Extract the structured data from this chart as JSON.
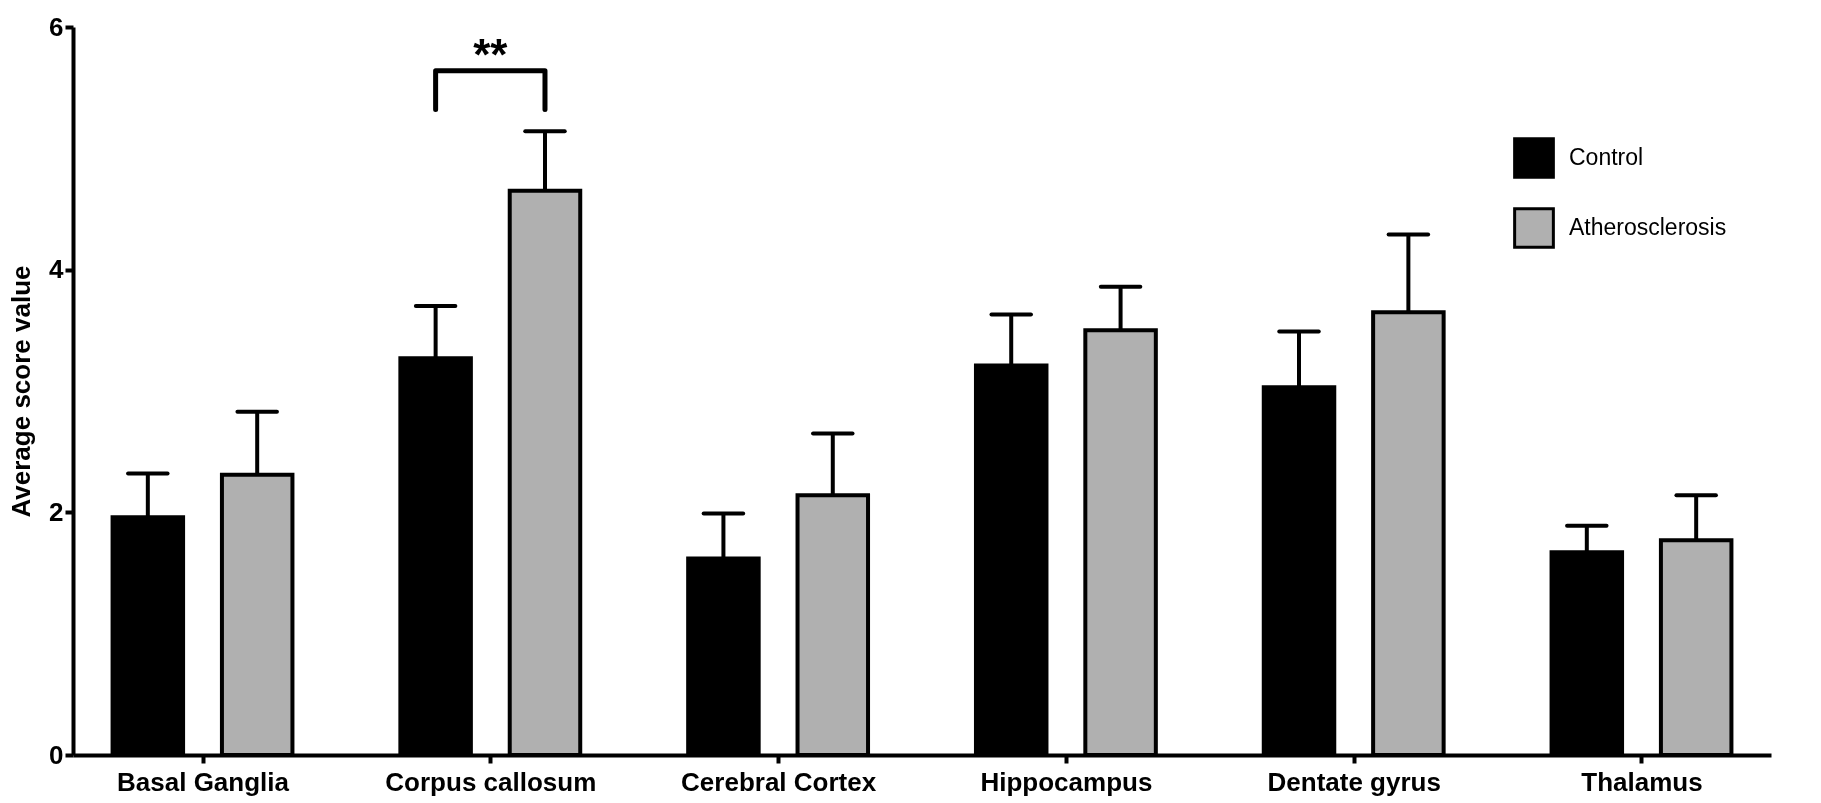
{
  "chart_data": {
    "type": "bar",
    "ylabel": "Average score value",
    "categories": [
      "Basal Ganglia",
      "Corpus callosum",
      "Cerebral Cortex",
      "Hippocampus",
      "Dentate gyrus",
      "Thalamus"
    ],
    "series": [
      {
        "name": "Control",
        "color": "#000000",
        "values": [
          1.96,
          3.27,
          1.62,
          3.21,
          3.03,
          1.67
        ],
        "errors": [
          [
            1.96,
            2.32
          ],
          [
            3.27,
            3.7
          ],
          [
            1.62,
            1.99
          ],
          [
            3.21,
            3.63
          ],
          [
            3.03,
            3.49
          ],
          [
            1.67,
            1.89
          ]
        ]
      },
      {
        "name": "Atherosclerosis",
        "color": "#b0b0b0",
        "values": [
          2.31,
          4.65,
          2.14,
          3.5,
          3.65,
          1.77
        ],
        "errors": [
          [
            2.31,
            2.83
          ],
          [
            4.65,
            5.14
          ],
          [
            2.14,
            2.65
          ],
          [
            3.5,
            3.86
          ],
          [
            3.65,
            4.29
          ],
          [
            1.77,
            2.14
          ]
        ]
      }
    ],
    "ylim": [
      0,
      6
    ],
    "yticks": [
      0,
      2,
      4,
      6
    ],
    "grid": false,
    "legend": "top right",
    "annotations": [
      "**"
    ]
  }
}
